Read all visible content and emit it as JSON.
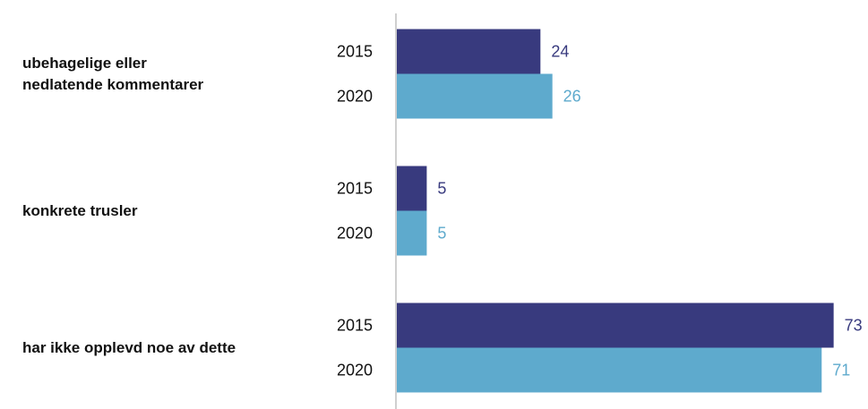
{
  "chart_data": {
    "type": "bar",
    "orientation": "horizontal",
    "categories": [
      "ubehagelige eller\nnedlatende kommentarer",
      "konkrete trusler",
      "har ikke opplevd noe av dette"
    ],
    "series": [
      {
        "name": "2015",
        "color": "#383a7e",
        "values": [
          24,
          5,
          73
        ]
      },
      {
        "name": "2020",
        "color": "#5eaacd",
        "values": [
          26,
          5,
          71
        ]
      }
    ]
  }
}
